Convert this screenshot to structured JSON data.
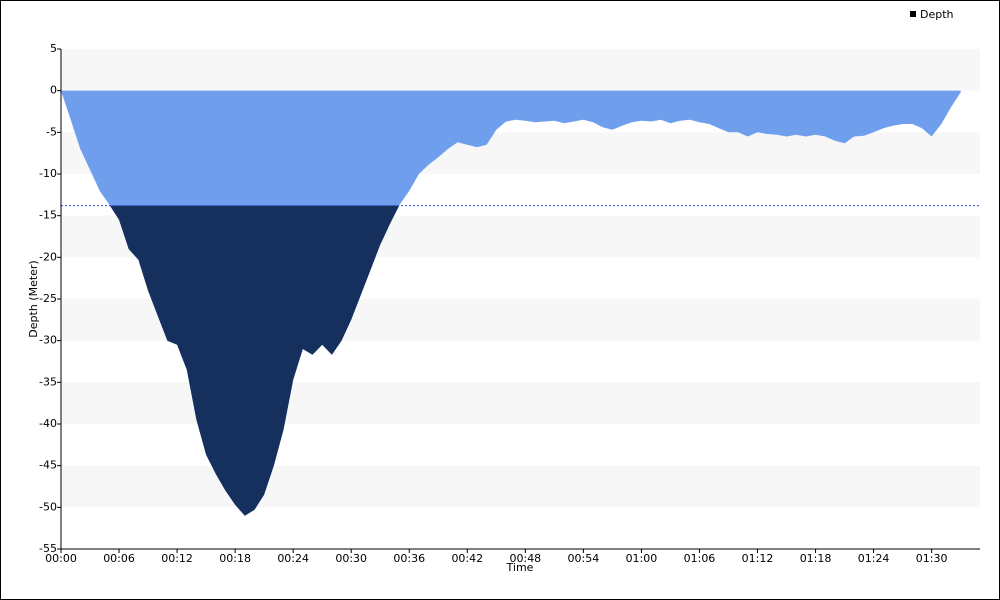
{
  "chart_data": {
    "type": "area",
    "legend": "Depth",
    "legend_position": "top-right",
    "x_label": "Time",
    "y_label": "Depth (Meter)",
    "color": "#6f9fec",
    "deep_color": "#16305e",
    "reference_line": -13.8,
    "reference_color": "#3344cc",
    "xlim": [
      0,
      95
    ],
    "ylim": [
      -55,
      5
    ],
    "xticks": [
      {
        "value": 0,
        "label": "00:00"
      },
      {
        "value": 6,
        "label": "00:06"
      },
      {
        "value": 12,
        "label": "00:12"
      },
      {
        "value": 18,
        "label": "00:18"
      },
      {
        "value": 24,
        "label": "00:24"
      },
      {
        "value": 30,
        "label": "00:30"
      },
      {
        "value": 36,
        "label": "00:36"
      },
      {
        "value": 42,
        "label": "00:42"
      },
      {
        "value": 48,
        "label": "00:48"
      },
      {
        "value": 54,
        "label": "00:54"
      },
      {
        "value": 60,
        "label": "01:00"
      },
      {
        "value": 66,
        "label": "01:06"
      },
      {
        "value": 72,
        "label": "01:12"
      },
      {
        "value": 78,
        "label": "01:18"
      },
      {
        "value": 84,
        "label": "01:24"
      },
      {
        "value": 90,
        "label": "01:30"
      }
    ],
    "yticks": [
      5,
      0,
      -5,
      -10,
      -15,
      -20,
      -25,
      -30,
      -35,
      -40,
      -45,
      -50,
      -55
    ],
    "x": [
      0,
      1,
      2,
      3,
      4,
      5,
      6,
      7,
      8,
      9,
      10,
      11,
      12,
      13,
      14,
      15,
      16,
      17,
      18,
      19,
      20,
      21,
      22,
      23,
      24,
      25,
      26,
      27,
      28,
      29,
      30,
      31,
      32,
      33,
      34,
      35,
      36,
      37,
      38,
      39,
      40,
      41,
      42,
      43,
      44,
      45,
      46,
      47,
      48,
      49,
      50,
      51,
      52,
      53,
      54,
      55,
      56,
      57,
      58,
      59,
      60,
      61,
      62,
      63,
      64,
      65,
      66,
      67,
      68,
      69,
      70,
      71,
      72,
      73,
      74,
      75,
      76,
      77,
      78,
      79,
      80,
      81,
      82,
      83,
      84,
      85,
      86,
      87,
      88,
      89,
      90,
      91,
      92,
      93
    ],
    "values": [
      0,
      -3.5,
      -7,
      -9.5,
      -12,
      -13.7,
      -15.5,
      -19,
      -20.3,
      -24,
      -27,
      -30,
      -30.5,
      -33.5,
      -39.5,
      -43.7,
      -46,
      -48,
      -49.7,
      -51,
      -50.3,
      -48.5,
      -45,
      -40.7,
      -34.7,
      -31,
      -31.7,
      -30.5,
      -31.7,
      -30,
      -27.5,
      -24.5,
      -21.5,
      -18.5,
      -16,
      -13.7,
      -12,
      -10,
      -8.9,
      -8,
      -7,
      -6.2,
      -6.5,
      -6.8,
      -6.5,
      -4.7,
      -3.7,
      -3.5,
      -3.6,
      -3.8,
      -3.7,
      -3.6,
      -3.9,
      -3.7,
      -3.5,
      -3.8,
      -4.4,
      -4.7,
      -4.2,
      -3.8,
      -3.6,
      -3.7,
      -3.5,
      -3.9,
      -3.6,
      -3.5,
      -3.8,
      -4,
      -4.5,
      -5,
      -5,
      -5.5,
      -5,
      -5.2,
      -5.3,
      -5.5,
      -5.3,
      -5.5,
      -5.3,
      -5.5,
      -6,
      -6.3,
      -5.5,
      -5.4,
      -5,
      -4.5,
      -4.2,
      -4,
      -4,
      -4.5,
      -5.5,
      -4,
      -2,
      -0.2
    ]
  }
}
